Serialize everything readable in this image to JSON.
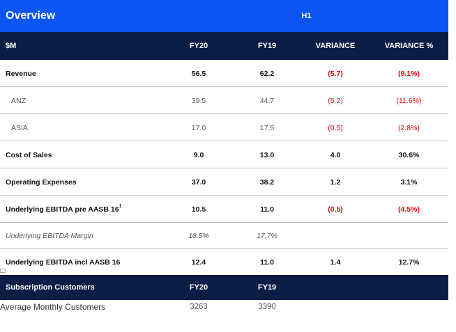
{
  "header": {
    "title": "Overview",
    "period": "H1"
  },
  "columns": [
    "$M",
    "FY20",
    "FY19",
    "VARIANCE",
    "VARIANCE %"
  ],
  "rows": [
    {
      "label": "Revenue",
      "sup": "",
      "fy20": "56.5",
      "fy19": "62.2",
      "variance": "(5.7)",
      "variance_pct": "(9.1%)"
    },
    {
      "label": "ANZ",
      "sup": "",
      "fy20": "39.5",
      "fy19": "44.7",
      "variance": "(5.2)",
      "variance_pct": "(11.6%)"
    },
    {
      "label": "ASIA",
      "sup": "",
      "fy20": "17.0",
      "fy19": "17.5",
      "variance": "(0.5)",
      "variance_pct": "(2.8%)"
    },
    {
      "label": "Cost of Sales",
      "sup": "",
      "fy20": "9.0",
      "fy19": "13.0",
      "variance": "4.0",
      "variance_pct": "30.6%"
    },
    {
      "label": "Operating Expenses",
      "sup": "",
      "fy20": "37.0",
      "fy19": "38.2",
      "variance": "1.2",
      "variance_pct": "3.1%"
    },
    {
      "label": "Underlying EBITDA pre AASB 16",
      "sup": "1",
      "fy20": "10.5",
      "fy19": "11.0",
      "variance": "(0.5)",
      "variance_pct": "(4.5%)"
    },
    {
      "label": "Underlying EBITDA Margin",
      "sup": "",
      "fy20": "18.5%",
      "fy19": "17.7%",
      "variance": "",
      "variance_pct": ""
    },
    {
      "label": "Underlying EBITDA incl AASB 16",
      "sup": "",
      "fy20": "12.4",
      "fy19": "11.0",
      "variance": "1.4",
      "variance_pct": "12.7%"
    }
  ],
  "subscription": {
    "label": "Subscription Customers",
    "fy20": "FY20",
    "fy19": "FY19",
    "avg_label": "Average Monthly Customers",
    "avg_fy20": "3263",
    "avg_fy19": "3390"
  },
  "colors": {
    "title_bar": "#0b55f2",
    "header_bar": "#0a1d45",
    "negative": "#e8000b",
    "divider": "#bfbfbf"
  }
}
